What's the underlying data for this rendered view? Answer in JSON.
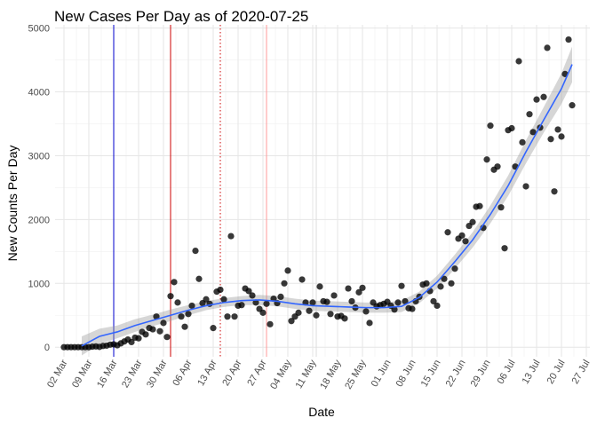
{
  "chart_data": {
    "type": "scatter",
    "title": "New Cases Per Day as of 2020-07-25",
    "xlabel": "Date",
    "ylabel": "New Counts Per Day",
    "x_start": "2020-03-02",
    "x_ticks": [
      "02 Mar",
      "09 Mar",
      "16 Mar",
      "23 Mar",
      "30 Mar",
      "06 Apr",
      "13 Apr",
      "20 Apr",
      "27 Apr",
      "04 May",
      "11 May",
      "18 May",
      "25 May",
      "01 Jun",
      "08 Jun",
      "15 Jun",
      "22 Jun",
      "29 Jun",
      "06 Jul",
      "13 Jul",
      "20 Jul",
      "27 Jul"
    ],
    "y_ticks": [
      0,
      1000,
      2000,
      3000,
      4000,
      5000
    ],
    "ylim": [
      -150,
      5050
    ],
    "xlim_day": [
      -2.5,
      148
    ],
    "grid": true,
    "points": [
      [
        0,
        0
      ],
      [
        1,
        0
      ],
      [
        2,
        0
      ],
      [
        3,
        0
      ],
      [
        4,
        0
      ],
      [
        5,
        0
      ],
      [
        6,
        0
      ],
      [
        7,
        0
      ],
      [
        8,
        8
      ],
      [
        9,
        12
      ],
      [
        10,
        5
      ],
      [
        11,
        20
      ],
      [
        12,
        25
      ],
      [
        13,
        40
      ],
      [
        14,
        45
      ],
      [
        15,
        30
      ],
      [
        16,
        60
      ],
      [
        17,
        90
      ],
      [
        18,
        120
      ],
      [
        19,
        80
      ],
      [
        20,
        150
      ],
      [
        21,
        140
      ],
      [
        22,
        240
      ],
      [
        23,
        200
      ],
      [
        24,
        300
      ],
      [
        25,
        280
      ],
      [
        26,
        480
      ],
      [
        27,
        250
      ],
      [
        28,
        380
      ],
      [
        29,
        160
      ],
      [
        30,
        800
      ],
      [
        31,
        1020
      ],
      [
        32,
        700
      ],
      [
        33,
        480
      ],
      [
        34,
        320
      ],
      [
        35,
        520
      ],
      [
        36,
        650
      ],
      [
        37,
        1510
      ],
      [
        38,
        1070
      ],
      [
        39,
        690
      ],
      [
        40,
        750
      ],
      [
        41,
        680
      ],
      [
        42,
        300
      ],
      [
        43,
        870
      ],
      [
        44,
        900
      ],
      [
        45,
        750
      ],
      [
        46,
        480
      ],
      [
        47,
        1740
      ],
      [
        48,
        480
      ],
      [
        49,
        650
      ],
      [
        50,
        660
      ],
      [
        51,
        920
      ],
      [
        52,
        880
      ],
      [
        53,
        810
      ],
      [
        54,
        700
      ],
      [
        55,
        600
      ],
      [
        56,
        540
      ],
      [
        57,
        680
      ],
      [
        58,
        360
      ],
      [
        59,
        760
      ],
      [
        60,
        690
      ],
      [
        61,
        790
      ],
      [
        62,
        1000
      ],
      [
        63,
        1200
      ],
      [
        64,
        410
      ],
      [
        65,
        480
      ],
      [
        66,
        540
      ],
      [
        67,
        1060
      ],
      [
        68,
        700
      ],
      [
        69,
        570
      ],
      [
        70,
        700
      ],
      [
        71,
        500
      ],
      [
        72,
        950
      ],
      [
        73,
        720
      ],
      [
        74,
        710
      ],
      [
        75,
        520
      ],
      [
        76,
        810
      ],
      [
        77,
        480
      ],
      [
        78,
        490
      ],
      [
        79,
        450
      ],
      [
        80,
        920
      ],
      [
        81,
        720
      ],
      [
        82,
        620
      ],
      [
        83,
        860
      ],
      [
        84,
        930
      ],
      [
        85,
        560
      ],
      [
        86,
        380
      ],
      [
        87,
        700
      ],
      [
        88,
        640
      ],
      [
        89,
        660
      ],
      [
        90,
        680
      ],
      [
        91,
        710
      ],
      [
        92,
        650
      ],
      [
        93,
        590
      ],
      [
        94,
        700
      ],
      [
        95,
        960
      ],
      [
        96,
        720
      ],
      [
        97,
        610
      ],
      [
        98,
        600
      ],
      [
        99,
        720
      ],
      [
        100,
        790
      ],
      [
        101,
        980
      ],
      [
        102,
        1000
      ],
      [
        103,
        880
      ],
      [
        104,
        720
      ],
      [
        105,
        650
      ],
      [
        106,
        950
      ],
      [
        107,
        1070
      ],
      [
        108,
        1800
      ],
      [
        109,
        1000
      ],
      [
        110,
        1230
      ],
      [
        111,
        1700
      ],
      [
        112,
        1750
      ],
      [
        113,
        1660
      ],
      [
        114,
        1900
      ],
      [
        115,
        1960
      ],
      [
        116,
        2200
      ],
      [
        117,
        2210
      ],
      [
        118,
        1870
      ],
      [
        119,
        2940
      ],
      [
        120,
        3470
      ],
      [
        121,
        2780
      ],
      [
        122,
        2830
      ],
      [
        123,
        2190
      ],
      [
        124,
        1550
      ],
      [
        125,
        3400
      ],
      [
        126,
        3430
      ],
      [
        127,
        2830
      ],
      [
        128,
        4480
      ],
      [
        129,
        3210
      ],
      [
        130,
        2520
      ],
      [
        131,
        3650
      ],
      [
        132,
        3370
      ],
      [
        133,
        3880
      ],
      [
        134,
        3440
      ],
      [
        135,
        3920
      ],
      [
        136,
        4690
      ],
      [
        137,
        3260
      ],
      [
        138,
        2440
      ],
      [
        139,
        3410
      ],
      [
        140,
        3300
      ],
      [
        141,
        4280
      ],
      [
        142,
        4820
      ],
      [
        143,
        3790
      ]
    ],
    "trend": {
      "color": "#3366ff",
      "band_color": "#999999",
      "x": [
        5,
        10,
        15,
        20,
        25,
        30,
        35,
        40,
        45,
        50,
        55,
        60,
        65,
        70,
        75,
        80,
        85,
        90,
        95,
        100,
        105,
        110,
        115,
        120,
        125,
        130,
        135,
        140,
        143
      ],
      "y": [
        20,
        170,
        240,
        340,
        420,
        500,
        580,
        650,
        700,
        730,
        740,
        720,
        680,
        650,
        640,
        630,
        620,
        620,
        640,
        780,
        1020,
        1340,
        1680,
        2080,
        2530,
        3060,
        3560,
        4050,
        4430
      ],
      "band": [
        150,
        120,
        100,
        100,
        90,
        90,
        80,
        70,
        70,
        70,
        80,
        80,
        80,
        80,
        80,
        80,
        80,
        80,
        90,
        90,
        100,
        110,
        120,
        140,
        160,
        180,
        200,
        240,
        280
      ]
    },
    "vlines": [
      {
        "day": 14,
        "color": "#0000cc",
        "style": "solid"
      },
      {
        "day": 30,
        "color": "#cc0000",
        "style": "solid"
      },
      {
        "day": 44,
        "color": "#cc0000",
        "style": "dotted"
      },
      {
        "day": 57,
        "color": "#ff9999",
        "style": "solid"
      },
      {
        "day": 71,
        "color": "#dddddd",
        "style": "solid"
      }
    ],
    "point_color": "#000000"
  }
}
